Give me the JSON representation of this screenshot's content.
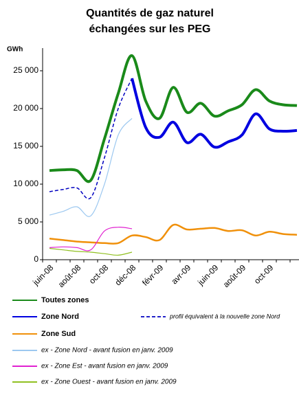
{
  "chart_data": {
    "type": "line",
    "title": [
      "Quantités de gaz naturel",
      "échangées sur les PEG"
    ],
    "y_axis_label": "GWh",
    "categories": [
      "juin-08",
      null,
      "août-08",
      null,
      "oct-08",
      null,
      "déc-08",
      null,
      "févr-09",
      null,
      "avr-09",
      null,
      "juin-09",
      null,
      "août-09",
      null,
      "oct-09",
      null,
      null
    ],
    "ylim": [
      0,
      28000
    ],
    "yticks": [
      0,
      {
        "value": 5000,
        "label": "5 000"
      },
      {
        "value": 10000,
        "label": "10 000"
      },
      {
        "value": 15000,
        "label": "15 000"
      },
      {
        "value": 20000,
        "label": "20 000"
      },
      {
        "value": 25000,
        "label": "25 000"
      }
    ],
    "grid": false,
    "series": [
      {
        "name": "Toutes zones",
        "color": "#1a8a1a",
        "values": [
          11800,
          11900,
          11800,
          10500,
          16000,
          22000,
          27000,
          21000,
          18700,
          22800,
          19500,
          20700,
          19000,
          19700,
          20500,
          22500,
          21000,
          20500,
          20400
        ]
      },
      {
        "name": "Zone Nord",
        "color": "#0000e0",
        "values": [
          null,
          null,
          null,
          null,
          null,
          null,
          24000,
          17500,
          16200,
          18200,
          15500,
          16600,
          14900,
          15600,
          16500,
          19300,
          17300,
          17000,
          17100
        ]
      },
      {
        "name": "Zone Sud",
        "color": "#f0900a",
        "values": [
          2800,
          2600,
          2400,
          2300,
          2200,
          2200,
          3200,
          3000,
          2600,
          4600,
          4000,
          4100,
          4200,
          3800,
          3900,
          3200,
          3700,
          3400,
          3300
        ]
      },
      {
        "name": "ex - Zone Nord - avant fusion en janv. 2009",
        "color": "#9cc8f0",
        "values": [
          5900,
          6400,
          7000,
          5800,
          10000,
          16500,
          18700,
          null,
          null,
          null,
          null,
          null,
          null,
          null,
          null,
          null,
          null,
          null,
          null
        ]
      },
      {
        "name": "ex - Zone Est - avant fusion en janv. 2009",
        "color": "#e020d0",
        "values": [
          1600,
          1700,
          1600,
          1300,
          3800,
          4300,
          4100,
          null,
          null,
          null,
          null,
          null,
          null,
          null,
          null,
          null,
          null,
          null,
          null
        ]
      },
      {
        "name": "ex - Zone Ouest - avant fusion en janv. 2009",
        "color": "#90c020",
        "values": [
          1500,
          1300,
          1100,
          1000,
          800,
          600,
          1000,
          null,
          null,
          null,
          null,
          null,
          null,
          null,
          null,
          null,
          null,
          null,
          null
        ]
      },
      {
        "name": "profil équivalent à la nouvelle zone Nord",
        "color": "#0000c0",
        "dashed": true,
        "values": [
          9000,
          9300,
          9500,
          8200,
          13500,
          20000,
          24000,
          null,
          null,
          null,
          null,
          null,
          null,
          null,
          null,
          null,
          null,
          null,
          null
        ]
      }
    ]
  }
}
